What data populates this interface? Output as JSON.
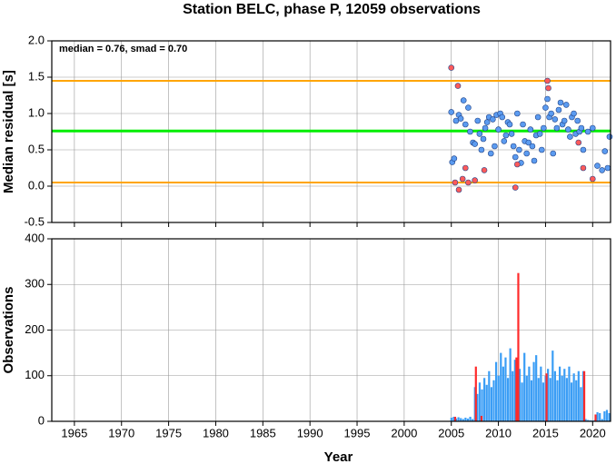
{
  "chart_data": [
    {
      "type": "scatter",
      "title": "Station BELC, phase P, 12059 observations",
      "annotation": "median = 0.76, smad = 0.70",
      "ylabel": "Median residual [s]",
      "xlim": [
        1962.6,
        2021.9
      ],
      "xticks": [
        1965,
        1970,
        1975,
        1980,
        1985,
        1990,
        1995,
        2000,
        2005,
        2010,
        2015,
        2020
      ],
      "ylim": [
        -0.5,
        2.0
      ],
      "yticks": [
        {
          "value": -0.5,
          "label": "-0.5"
        },
        {
          "value": 0,
          "label": "0.0"
        },
        {
          "value": 0.5,
          "label": "0.5"
        },
        {
          "value": 1,
          "label": "1.0"
        },
        {
          "value": 1.5,
          "label": "1.5"
        },
        {
          "value": 2,
          "label": "2.0"
        }
      ],
      "grid": true,
      "hlines": [
        {
          "value": 1.45,
          "color": "#ffa500"
        },
        {
          "value": 0.76,
          "color": "#00ee00"
        },
        {
          "value": 0.05,
          "color": "#ffa500"
        }
      ],
      "series": [
        {
          "color": "#5b9bf0",
          "x": [
            2005.0,
            2005.1,
            2005.3,
            2005.5,
            2005.8,
            2006.0,
            2006.3,
            2006.5,
            2006.8,
            2007.0,
            2007.3,
            2007.5,
            2007.8,
            2008.0,
            2008.2,
            2008.4,
            2008.6,
            2008.8,
            2009.0,
            2009.2,
            2009.4,
            2009.6,
            2009.8,
            2010.0,
            2010.2,
            2010.4,
            2010.6,
            2010.8,
            2011.0,
            2011.2,
            2011.4,
            2011.6,
            2011.8,
            2012.0,
            2012.2,
            2012.4,
            2012.6,
            2012.8,
            2013.0,
            2013.2,
            2013.4,
            2013.6,
            2013.8,
            2014.0,
            2014.2,
            2014.4,
            2014.6,
            2014.8,
            2015.0,
            2015.2,
            2015.4,
            2015.6,
            2015.8,
            2016.0,
            2016.2,
            2016.4,
            2016.6,
            2016.8,
            2017.0,
            2017.2,
            2017.4,
            2017.6,
            2017.8,
            2018.0,
            2018.2,
            2018.4,
            2018.6,
            2018.8,
            2019.0,
            2019.5,
            2020.0,
            2020.5,
            2021.0,
            2021.3,
            2021.6,
            2021.8
          ],
          "values": [
            1.02,
            0.33,
            0.38,
            0.9,
            0.98,
            0.93,
            1.18,
            0.85,
            1.08,
            0.75,
            0.6,
            0.58,
            0.9,
            0.72,
            0.5,
            0.65,
            0.8,
            0.88,
            0.95,
            0.45,
            0.92,
            0.55,
            0.98,
            0.78,
            1.0,
            0.95,
            0.62,
            0.7,
            0.88,
            0.85,
            0.72,
            0.55,
            0.4,
            1.0,
            0.5,
            0.32,
            0.85,
            0.62,
            0.45,
            0.6,
            0.78,
            0.55,
            0.35,
            0.7,
            0.95,
            0.72,
            0.5,
            0.8,
            1.08,
            1.2,
            0.95,
            1.0,
            0.45,
            0.92,
            0.8,
            1.05,
            1.15,
            0.85,
            0.9,
            1.12,
            0.78,
            0.68,
            0.95,
            1.0,
            0.72,
            0.9,
            0.75,
            0.8,
            0.5,
            0.75,
            0.8,
            0.28,
            0.22,
            0.48,
            0.25,
            0.68
          ]
        },
        {
          "color": "#ff5a5a",
          "x": [
            2005.0,
            2005.4,
            2005.7,
            2005.8,
            2006.2,
            2006.5,
            2006.8,
            2007.5,
            2008.5,
            2011.8,
            2012.0,
            2015.2,
            2015.3,
            2018.5,
            2019.0,
            2020.0
          ],
          "values": [
            1.63,
            0.05,
            1.38,
            -0.05,
            0.1,
            0.25,
            0.05,
            0.08,
            0.22,
            -0.02,
            0.3,
            1.45,
            1.35,
            0.6,
            0.25,
            0.1
          ]
        }
      ]
    },
    {
      "type": "bar",
      "ylabel": "Observations",
      "xlabel": "Year",
      "xlim": [
        1962.6,
        2021.9
      ],
      "xticks": [
        1965,
        1970,
        1975,
        1980,
        1985,
        1990,
        1995,
        2000,
        2005,
        2010,
        2015,
        2020
      ],
      "ylim": [
        0,
        400
      ],
      "yticks": [
        0,
        100,
        200,
        300,
        400
      ],
      "grid": true,
      "series": [
        {
          "color": "#3a9df5",
          "x": [
            2005.0,
            2005.25,
            2005.5,
            2005.75,
            2006.0,
            2006.25,
            2006.5,
            2006.75,
            2007.0,
            2007.25,
            2007.5,
            2007.75,
            2008.0,
            2008.25,
            2008.5,
            2008.75,
            2009.0,
            2009.25,
            2009.5,
            2009.75,
            2010.0,
            2010.25,
            2010.5,
            2010.75,
            2011.0,
            2011.25,
            2011.5,
            2011.75,
            2012.0,
            2012.25,
            2012.5,
            2012.75,
            2013.0,
            2013.25,
            2013.5,
            2013.75,
            2014.0,
            2014.25,
            2014.5,
            2014.75,
            2015.0,
            2015.25,
            2015.5,
            2015.75,
            2016.0,
            2016.25,
            2016.5,
            2016.75,
            2017.0,
            2017.25,
            2017.5,
            2017.75,
            2018.0,
            2018.25,
            2018.5,
            2018.75,
            2019.0,
            2019.25,
            2019.5,
            2019.75,
            2020.0,
            2020.25,
            2020.5,
            2020.75,
            2021.0,
            2021.25,
            2021.5,
            2021.75
          ],
          "values": [
            8,
            10,
            6,
            9,
            7,
            5,
            8,
            6,
            10,
            5,
            75,
            60,
            85,
            70,
            95,
            80,
            110,
            75,
            90,
            130,
            100,
            150,
            120,
            140,
            95,
            160,
            110,
            135,
            90,
            115,
            85,
            150,
            100,
            120,
            90,
            130,
            145,
            95,
            120,
            85,
            100,
            115,
            95,
            155,
            110,
            90,
            120,
            100,
            115,
            95,
            120,
            85,
            105,
            90,
            110,
            75,
            110,
            5,
            3,
            2,
            2,
            3,
            20,
            18,
            5,
            22,
            25,
            18
          ]
        },
        {
          "color": "#ff2a2a",
          "x": [
            2005.4,
            2007.6,
            2008.2,
            2011.9,
            2012.1,
            2015.1,
            2019.1,
            2020.3
          ],
          "values": [
            10,
            120,
            12,
            140,
            325,
            105,
            110,
            15
          ]
        }
      ]
    }
  ]
}
